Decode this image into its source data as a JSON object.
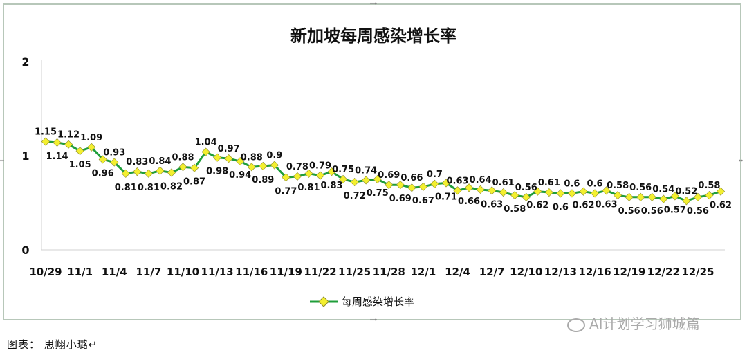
{
  "chart_data": {
    "type": "line",
    "title": "新加坡每周感染增长率",
    "ylim": [
      0,
      2
    ],
    "yticks": [
      "0",
      "1",
      "2"
    ],
    "grid": false,
    "legend_position": "bottom-center",
    "series": [
      {
        "name": "每周感染增长率",
        "color": "#1f9e3a",
        "marker_color": "#f3ef2f",
        "values": [
          1.15,
          1.14,
          1.12,
          1.05,
          1.09,
          0.96,
          0.93,
          0.81,
          0.83,
          0.81,
          0.84,
          0.82,
          0.88,
          0.87,
          1.04,
          0.98,
          0.97,
          0.94,
          0.88,
          0.89,
          0.9,
          0.77,
          0.78,
          0.81,
          0.79,
          0.83,
          0.75,
          0.72,
          0.74,
          0.75,
          0.69,
          0.69,
          0.66,
          0.67,
          0.7,
          0.71,
          0.63,
          0.66,
          0.64,
          0.63,
          0.61,
          0.58,
          0.56,
          0.62,
          0.61,
          0.6,
          0.6,
          0.62,
          0.6,
          0.63,
          0.58,
          0.56,
          0.56,
          0.56,
          0.54,
          0.57,
          0.52,
          0.56,
          0.58,
          0.62
        ]
      }
    ],
    "x_tick_labels": [
      "10/29",
      "11/1",
      "11/4",
      "11/7",
      "11/10",
      "11/13",
      "11/16",
      "11/19",
      "11/22",
      "11/25",
      "11/28",
      "12/1",
      "12/4",
      "12/7",
      "12/10",
      "12/13",
      "12/16",
      "12/19",
      "12/22",
      "12/25"
    ]
  },
  "caption": "图表： 思翔小璐↵",
  "watermark": "AI计划学习狮城篇"
}
